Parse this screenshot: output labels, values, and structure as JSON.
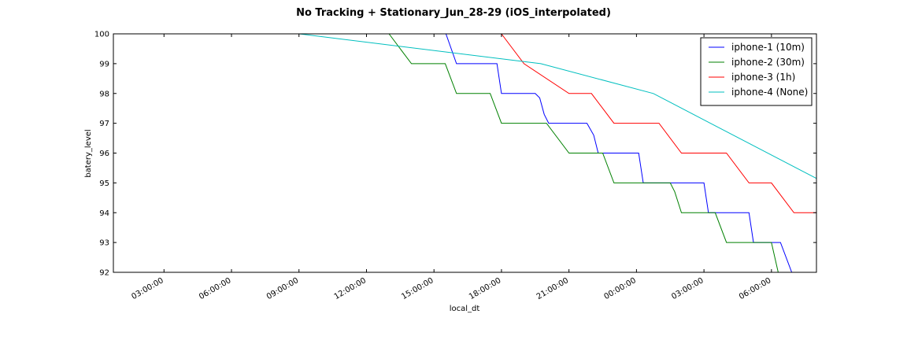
{
  "chart_data": {
    "type": "line",
    "title": "No Tracking + Stationary_Jun_28-29 (iOS_interpolated)",
    "xlabel": "local_dt",
    "ylabel": "batery_level",
    "xlim": [
      "2016-06-28 00:45",
      "2016-06-29 08:00"
    ],
    "ylim": [
      92,
      100
    ],
    "grid": false,
    "legend_position": "top-right",
    "x_ticks": [
      "03:00:00",
      "06:00:00",
      "09:00:00",
      "12:00:00",
      "15:00:00",
      "18:00:00",
      "21:00:00",
      "00:00:00",
      "03:00:00",
      "06:00:00"
    ],
    "x_tick_times": [
      "2016-06-28 03:00",
      "2016-06-28 06:00",
      "2016-06-28 09:00",
      "2016-06-28 12:00",
      "2016-06-28 15:00",
      "2016-06-28 18:00",
      "2016-06-28 21:00",
      "2016-06-29 00:00",
      "2016-06-29 03:00",
      "2016-06-29 06:00"
    ],
    "y_ticks": [
      92,
      93,
      94,
      95,
      96,
      97,
      98,
      99,
      100
    ],
    "series": [
      {
        "name": "iphone-1 (10m)",
        "color": "#0000ff",
        "points": [
          [
            "2016-06-28 00:45",
            100
          ],
          [
            "2016-06-28 15:32",
            100
          ],
          [
            "2016-06-28 16:00",
            99
          ],
          [
            "2016-06-28 17:48",
            99
          ],
          [
            "2016-06-28 18:00",
            98
          ],
          [
            "2016-06-28 19:30",
            98
          ],
          [
            "2016-06-28 19:42",
            97.85
          ],
          [
            "2016-06-28 19:54",
            97.3
          ],
          [
            "2016-06-28 20:06",
            97
          ],
          [
            "2016-06-28 21:48",
            97
          ],
          [
            "2016-06-28 22:06",
            96.6
          ],
          [
            "2016-06-28 22:18",
            96
          ],
          [
            "2016-06-29 00:06",
            96
          ],
          [
            "2016-06-29 00:18",
            95
          ],
          [
            "2016-06-29 03:00",
            95
          ],
          [
            "2016-06-29 03:12",
            94
          ],
          [
            "2016-06-29 05:00",
            94
          ],
          [
            "2016-06-29 05:12",
            93
          ],
          [
            "2016-06-29 06:24",
            93
          ],
          [
            "2016-06-29 06:54",
            92
          ],
          [
            "2016-06-29 08:00",
            92
          ]
        ]
      },
      {
        "name": "iphone-2 (30m)",
        "color": "#008000",
        "points": [
          [
            "2016-06-28 00:45",
            100
          ],
          [
            "2016-06-28 13:00",
            100
          ],
          [
            "2016-06-28 14:00",
            99
          ],
          [
            "2016-06-28 15:30",
            99
          ],
          [
            "2016-06-28 16:00",
            98
          ],
          [
            "2016-06-28 17:30",
            98
          ],
          [
            "2016-06-28 18:00",
            97
          ],
          [
            "2016-06-28 20:00",
            97
          ],
          [
            "2016-06-28 21:00",
            96
          ],
          [
            "2016-06-28 22:30",
            96
          ],
          [
            "2016-06-28 23:00",
            95
          ],
          [
            "2016-06-29 01:30",
            95
          ],
          [
            "2016-06-29 01:42",
            94.7
          ],
          [
            "2016-06-29 02:00",
            94
          ],
          [
            "2016-06-29 03:30",
            94
          ],
          [
            "2016-06-29 04:00",
            93
          ],
          [
            "2016-06-29 05:30",
            93
          ],
          [
            "2016-06-29 06:00",
            93
          ],
          [
            "2016-06-29 06:18",
            92
          ],
          [
            "2016-06-29 08:00",
            92
          ]
        ]
      },
      {
        "name": "iphone-3 (1h)",
        "color": "#ff0000",
        "points": [
          [
            "2016-06-28 18:00",
            100
          ],
          [
            "2016-06-28 19:00",
            99
          ],
          [
            "2016-06-28 21:00",
            98
          ],
          [
            "2016-06-28 22:00",
            98
          ],
          [
            "2016-06-28 23:00",
            97
          ],
          [
            "2016-06-29 01:00",
            97
          ],
          [
            "2016-06-29 02:00",
            96
          ],
          [
            "2016-06-29 04:00",
            96
          ],
          [
            "2016-06-29 05:00",
            95
          ],
          [
            "2016-06-29 06:00",
            95
          ],
          [
            "2016-06-29 07:00",
            94
          ],
          [
            "2016-06-29 08:00",
            94
          ]
        ]
      },
      {
        "name": "iphone-4 (None)",
        "color": "#00bfbf",
        "points": [
          [
            "2016-06-28 00:45",
            100
          ],
          [
            "2016-06-28 09:00",
            100
          ],
          [
            "2016-06-28 19:45",
            99
          ],
          [
            "2016-06-29 00:45",
            98
          ],
          [
            "2016-06-29 08:00",
            95.15
          ]
        ]
      }
    ]
  }
}
